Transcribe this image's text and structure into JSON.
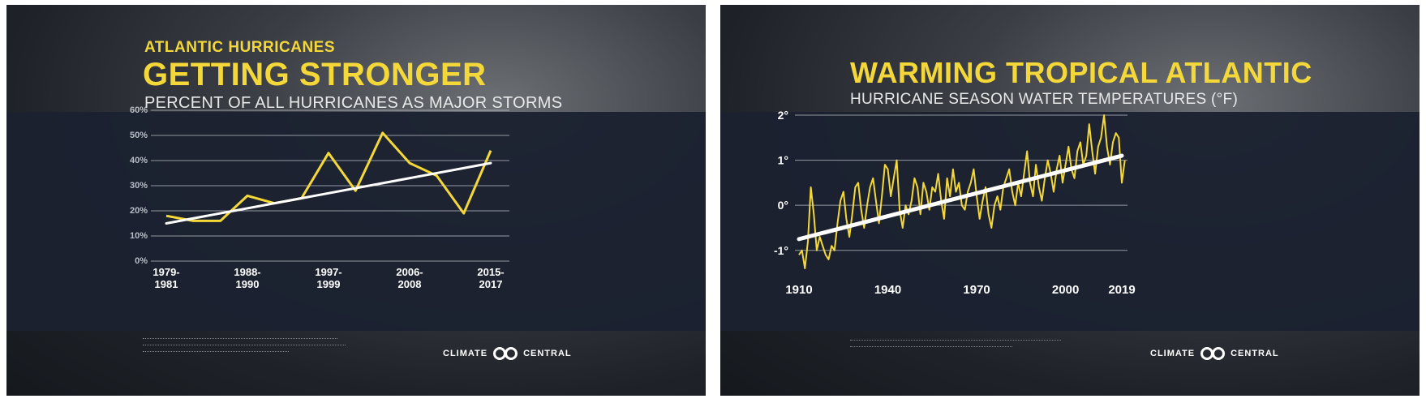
{
  "left": {
    "kicker": "ATLANTIC HURRICANES",
    "title": "GETTING STRONGER",
    "subtitle": "PERCENT OF ALL HURRICANES AS MAJOR STORMS",
    "logo": {
      "left": "CLIMATE",
      "right": "CENTRAL"
    }
  },
  "right": {
    "title": "WARMING TROPICAL ATLANTIC",
    "subtitle": "HURRICANE SEASON WATER TEMPERATURES (°F)",
    "logo": {
      "left": "CLIMATE",
      "right": "CENTRAL"
    }
  },
  "colors": {
    "series": "#f4d83a",
    "trend": "#ffffff",
    "grid": "#c9ccd2",
    "band": "#1b2130",
    "accent": "#f4d83a"
  },
  "chart_data": [
    {
      "type": "line",
      "title": "GETTING STRONGER",
      "ylabel": "",
      "xlabel": "",
      "ylim": [
        0,
        60
      ],
      "y_ticks": [
        0,
        10,
        20,
        30,
        40,
        50,
        60
      ],
      "y_tick_labels": [
        "0%",
        "10%",
        "20%",
        "30%",
        "40%",
        "50%",
        "60%"
      ],
      "x_ticks": [
        1979,
        1988,
        1997,
        2006,
        2015
      ],
      "x_tick_labels": [
        "1979-\n1981",
        "1988-\n1990",
        "1997-\n1999",
        "2006-\n2008",
        "2015-\n2017"
      ],
      "xlim": [
        1979,
        2015
      ],
      "grid": true,
      "series": [
        {
          "x": [
            1979,
            1982,
            1985,
            1988,
            1991,
            1994,
            1997,
            2000,
            2003,
            2006,
            2009,
            2012,
            2015
          ],
          "values": [
            18,
            16,
            16,
            26,
            23,
            25,
            43,
            28,
            51,
            39,
            34,
            19,
            44
          ]
        }
      ],
      "trend": {
        "x": [
          1979,
          2015
        ],
        "values": [
          15,
          39
        ]
      }
    },
    {
      "type": "line",
      "title": "WARMING TROPICAL ATLANTIC",
      "ylabel": "",
      "xlabel": "",
      "ylim": [
        -1.4,
        2.0
      ],
      "y_ticks": [
        -1,
        0,
        1,
        2
      ],
      "y_tick_labels": [
        "-1°",
        "0°",
        "1°",
        "2°"
      ],
      "x_ticks": [
        1910,
        1940,
        1970,
        2000,
        2019
      ],
      "x_tick_labels": [
        "1910",
        "1940",
        "1970",
        "2000",
        "2019"
      ],
      "xlim": [
        1910,
        2019
      ],
      "grid": true,
      "series": [
        {
          "x_start": 1910,
          "values": [
            -1.1,
            -1.0,
            -1.4,
            -0.8,
            0.4,
            -0.2,
            -1.0,
            -0.7,
            -0.9,
            -1.1,
            -1.2,
            -0.9,
            -1.0,
            -0.4,
            0.1,
            0.3,
            -0.3,
            -0.7,
            -0.2,
            0.4,
            0.5,
            -0.1,
            -0.5,
            0.0,
            0.4,
            0.6,
            0.1,
            -0.4,
            0.2,
            0.9,
            0.8,
            0.2,
            0.6,
            1.0,
            -0.1,
            -0.5,
            0.0,
            -0.2,
            0.1,
            0.6,
            0.4,
            -0.2,
            0.5,
            0.3,
            -0.1,
            0.4,
            0.3,
            0.7,
            0.1,
            -0.3,
            0.6,
            0.2,
            0.8,
            0.3,
            0.5,
            0.0,
            -0.1,
            0.3,
            0.5,
            0.8,
            0.2,
            -0.3,
            0.1,
            0.4,
            -0.2,
            -0.5,
            0.0,
            0.2,
            -0.1,
            0.4,
            0.6,
            0.8,
            0.3,
            0.0,
            0.5,
            0.2,
            0.7,
            1.2,
            0.5,
            0.2,
            0.9,
            0.4,
            0.1,
            0.6,
            1.0,
            0.7,
            0.3,
            0.8,
            1.1,
            0.5,
            0.9,
            1.3,
            0.8,
            0.6,
            1.2,
            1.4,
            0.9,
            1.1,
            1.8,
            1.2,
            0.7,
            1.3,
            1.5,
            2.0,
            1.3,
            0.9,
            1.4,
            1.6,
            1.5,
            0.5,
            1.0
          ]
        }
      ],
      "trend": {
        "x": [
          1910,
          2019
        ],
        "values": [
          -0.75,
          1.1
        ]
      }
    }
  ]
}
